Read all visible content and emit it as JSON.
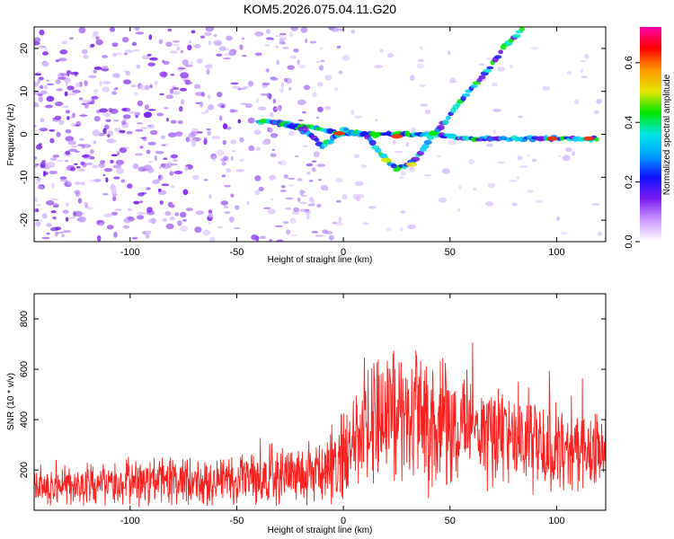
{
  "title": "KOM5.2026.075.04.11.G20",
  "chart_data": [
    {
      "type": "heatmap",
      "xlabel": "Height of straight line (km)",
      "ylabel": "Frequency (Hz)",
      "xlim": [
        -145,
        123
      ],
      "ylim": [
        -25,
        25
      ],
      "xticks": [
        -100,
        -50,
        0,
        50,
        100
      ],
      "yticks": [
        -20,
        -10,
        0,
        10,
        20
      ],
      "colorbar": {
        "label": "Normalized spectral amplitude",
        "range": [
          0.0,
          0.72
        ],
        "ticks": [
          0.0,
          0.2,
          0.4,
          0.6
        ],
        "colors": [
          "#ffffff",
          "#cc99ff",
          "#7a1cf0",
          "#1010ff",
          "#00a0ff",
          "#00e6e6",
          "#00e600",
          "#e6e600",
          "#ff9900",
          "#ff0000",
          "#ff00aa"
        ]
      },
      "features": [
        {
          "name": "horizontal_line",
          "points": [
            [
              -40,
              3
            ],
            [
              -20,
              2
            ],
            [
              -10,
              1
            ],
            [
              0,
              0
            ],
            [
              20,
              0
            ],
            [
              40,
              0
            ],
            [
              60,
              -1
            ],
            [
              80,
              -1
            ],
            [
              100,
              -1
            ],
            [
              120,
              -1
            ]
          ]
        },
        {
          "name": "v_curve",
          "points": [
            [
              -30,
              3
            ],
            [
              -15,
              0
            ],
            [
              -10,
              -3
            ],
            [
              0,
              1
            ],
            [
              10,
              0
            ],
            [
              15,
              -3
            ],
            [
              20,
              -6
            ],
            [
              25,
              -8
            ],
            [
              30,
              -7
            ],
            [
              35,
              -5
            ],
            [
              42,
              0
            ],
            [
              48,
              3
            ],
            [
              55,
              8
            ],
            [
              65,
              13
            ],
            [
              75,
              20
            ],
            [
              85,
              25
            ]
          ]
        }
      ],
      "noise_density": [
        [
          -145,
          0.9
        ],
        [
          -60,
          0.7
        ],
        [
          0,
          0.45
        ],
        [
          10,
          0.12
        ],
        [
          50,
          0.15
        ],
        [
          123,
          0.1
        ]
      ]
    },
    {
      "type": "line",
      "xlabel": "Height of straight line (km)",
      "ylabel": "SNR (10 * v/v)",
      "xlim": [
        -145,
        123
      ],
      "ylim": [
        40,
        900
      ],
      "xticks": [
        -100,
        -50,
        0,
        50,
        100
      ],
      "yticks": [
        200,
        400,
        600,
        800
      ],
      "color": "#ff2020",
      "envelope": {
        "x": [
          -145,
          -120,
          -100,
          -80,
          -60,
          -40,
          -20,
          -5,
          5,
          10,
          20,
          25,
          35,
          50,
          65,
          80,
          95,
          110,
          123
        ],
        "mean": [
          135,
          140,
          150,
          155,
          160,
          165,
          175,
          200,
          300,
          380,
          420,
          430,
          390,
          370,
          360,
          340,
          300,
          280,
          270
        ],
        "spread": [
          90,
          95,
          105,
          115,
          125,
          130,
          145,
          170,
          230,
          300,
          340,
          350,
          320,
          290,
          270,
          250,
          230,
          190,
          170
        ]
      }
    }
  ]
}
